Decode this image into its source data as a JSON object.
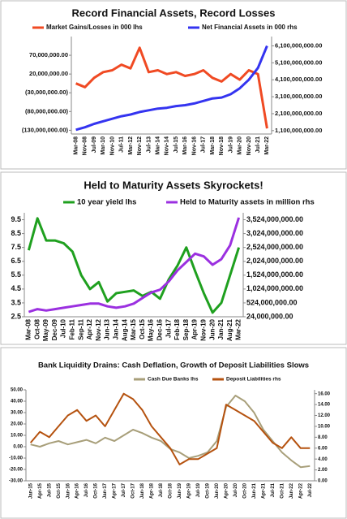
{
  "chart_data": [
    {
      "type": "line",
      "title": "Record Financial Assets, Record Losses",
      "categories": [
        "Mar-08",
        "Nov-08",
        "Jul-09",
        "Mar-10",
        "Nov-10",
        "Jul-11",
        "Mar-12",
        "Nov-12",
        "Jul-13",
        "Mar-14",
        "Nov-14",
        "Jul-15",
        "Mar-16",
        "Nov-16",
        "Jul-17",
        "Mar-18",
        "Nov-18",
        "Jul-19",
        "Mar-20",
        "Nov-20",
        "Jul-21",
        "Mar-22"
      ],
      "series": [
        {
          "name": "Market Gains/Losses in 000 lhs",
          "color": "#f04a23",
          "values": [
            -5000000,
            -15000000,
            10000000,
            25000000,
            30000000,
            45000000,
            35000000,
            90000000,
            25000000,
            30000000,
            20000000,
            25000000,
            15000000,
            20000000,
            30000000,
            10000000,
            0,
            20000000,
            5000000,
            30000000,
            20000000,
            -125000000
          ]
        },
        {
          "name": "Net Financial Assets in 000 rhs",
          "color": "#3434f0",
          "axis": "y2",
          "values": [
            1150000000,
            1300000000,
            1500000000,
            1650000000,
            1800000000,
            1950000000,
            2050000000,
            2200000000,
            2300000000,
            2400000000,
            2450000000,
            2550000000,
            2600000000,
            2700000000,
            2850000000,
            3000000000,
            3050000000,
            3250000000,
            3600000000,
            4100000000,
            4800000000,
            6100000000
          ]
        }
      ],
      "ylim": [
        -140000000,
        120000000
      ],
      "yticks": [
        {
          "value": 70000000,
          "label": "70,000,000.00"
        },
        {
          "value": 20000000,
          "label": "20,000,000.00"
        },
        {
          "value": -30000000,
          "label": "(30,000,000.00)"
        },
        {
          "value": -80000000,
          "label": "(80,000,000.00)"
        },
        {
          "value": -130000000,
          "label": "(130,000,000.00)"
        }
      ],
      "y2lim": [
        900000000,
        6650000000
      ],
      "y2ticks": [
        {
          "value": 6100000000,
          "label": "6,100,000,000.00"
        },
        {
          "value": 5100000000,
          "label": "5,100,000,000.00"
        },
        {
          "value": 4100000000,
          "label": "4,100,000,000.00"
        },
        {
          "value": 3100000000,
          "label": "3,100,000,000.00"
        },
        {
          "value": 2100000000,
          "label": "2,100,000,000.00"
        },
        {
          "value": 1100000000,
          "label": "1,100,000,000.00"
        }
      ]
    },
    {
      "type": "line",
      "title": "Held to Maturity Assets Skyrockets!",
      "categories": [
        "Mar-08",
        "Oct-08",
        "May-09",
        "Dec-09",
        "Jul-10",
        "Feb-11",
        "Sep-11",
        "Apr-12",
        "Nov-12",
        "Jun-13",
        "Jan-14",
        "Aug-14",
        "Mar-15",
        "Oct-15",
        "May-16",
        "Dec-16",
        "Jul-17",
        "Feb-18",
        "Sep-18",
        "Apr-19",
        "Nov-19",
        "Jun-20",
        "Jan-21",
        "Aug-21",
        "Mar-22"
      ],
      "series": [
        {
          "name": "10 year yield lhs",
          "color": "#1fa01f",
          "values": [
            7.3,
            9.6,
            8.0,
            8.0,
            7.8,
            7.2,
            5.5,
            4.5,
            5.0,
            3.6,
            4.2,
            4.3,
            4.4,
            4.0,
            4.3,
            3.8,
            5.2,
            6.2,
            7.5,
            5.8,
            4.2,
            2.8,
            3.5,
            5.5,
            7.5
          ]
        },
        {
          "name": "Held to Maturity assets in million rhs",
          "color": "#9b30e0",
          "axis": "y2",
          "values": [
            200000000,
            300000000,
            250000000,
            300000000,
            350000000,
            400000000,
            450000000,
            500000000,
            500000000,
            400000000,
            350000000,
            400000000,
            500000000,
            700000000,
            900000000,
            1000000000,
            1300000000,
            1700000000,
            2000000000,
            2300000000,
            2200000000,
            1900000000,
            2100000000,
            2600000000,
            3600000000
          ]
        }
      ],
      "ylim": [
        2.5,
        10
      ],
      "yticks": [
        9.5,
        8.5,
        7.5,
        6.5,
        5.5,
        4.5,
        3.5,
        2.5
      ],
      "y2lim": [
        24000000,
        3774000000
      ],
      "y2ticks": [
        {
          "value": 3524000000,
          "label": "3,524,000,000.00"
        },
        {
          "value": 3024000000,
          "label": "3,024,000,000.00"
        },
        {
          "value": 2524000000,
          "label": "2,524,000,000.00"
        },
        {
          "value": 2024000000,
          "label": "2,024,000,000.00"
        },
        {
          "value": 1524000000,
          "label": "1,524,000,000.00"
        },
        {
          "value": 1024000000,
          "label": "1,024,000,000.00"
        },
        {
          "value": 524000000,
          "label": "524,000,000.00"
        },
        {
          "value": 24000000,
          "label": "24,000,000.00"
        }
      ]
    },
    {
      "type": "line",
      "title": "Bank Liquidity Drains: Cash Deflation, Growth of Deposit Liabilities Slows",
      "categories": [
        "Jan-15",
        "Apr-15",
        "Jul-15",
        "Oct-15",
        "Jan-16",
        "Apr-16",
        "Jul-16",
        "Oct-16",
        "Jan-17",
        "Apr-17",
        "Jul-17",
        "Oct-17",
        "Jan-18",
        "Apr-18",
        "Jul-18",
        "Oct-18",
        "Jan-19",
        "Apr-19",
        "Jul-19",
        "Oct-19",
        "Jan-20",
        "Apr-20",
        "Jul-20",
        "Oct-20",
        "Jan-21",
        "Apr-21",
        "Jul-21",
        "Oct-21",
        "Jan-22",
        "Apr-22",
        "Jul-22"
      ],
      "series": [
        {
          "name": "Cash Due Banks lhs",
          "color": "#a89f7a",
          "values": [
            2,
            0,
            3,
            5,
            2,
            4,
            6,
            3,
            8,
            5,
            10,
            15,
            12,
            8,
            5,
            -2,
            -5,
            -10,
            -8,
            -5,
            5,
            35,
            45,
            40,
            30,
            15,
            5,
            -5,
            -12,
            -18,
            -17
          ]
        },
        {
          "name": "Deposit Liabilities rhs",
          "color": "#b5520f",
          "axis": "y2",
          "values": [
            7,
            9,
            8,
            10,
            12,
            13,
            11,
            12,
            10,
            13,
            16,
            15,
            13,
            10,
            8,
            6,
            3,
            4,
            4,
            5,
            6,
            14,
            13,
            12,
            11,
            9,
            7,
            6,
            8,
            6,
            6
          ]
        }
      ],
      "ylim": [
        -30,
        50
      ],
      "yticks": [
        {
          "value": 50,
          "label": "50.00"
        },
        {
          "value": 40,
          "label": "40.00"
        },
        {
          "value": 30,
          "label": "30.00"
        },
        {
          "value": 20,
          "label": "20.00"
        },
        {
          "value": 10,
          "label": "10.00"
        },
        {
          "value": 0,
          "label": "0.00"
        },
        {
          "value": -10,
          "label": "-10.00"
        },
        {
          "value": -20,
          "label": "-20.00"
        },
        {
          "value": -30,
          "label": "-30.00"
        }
      ],
      "y2lim": [
        0,
        16.7
      ],
      "y2ticks": [
        {
          "value": 16,
          "label": "16.00"
        },
        {
          "value": 14,
          "label": "14.00"
        },
        {
          "value": 12,
          "label": "12.00"
        },
        {
          "value": 10,
          "label": "10.00"
        },
        {
          "value": 8,
          "label": "8.00"
        },
        {
          "value": 6,
          "label": "6.00"
        },
        {
          "value": 4,
          "label": "4.00"
        },
        {
          "value": 2,
          "label": "2.00"
        },
        {
          "value": 0,
          "label": "0.00"
        }
      ]
    }
  ]
}
